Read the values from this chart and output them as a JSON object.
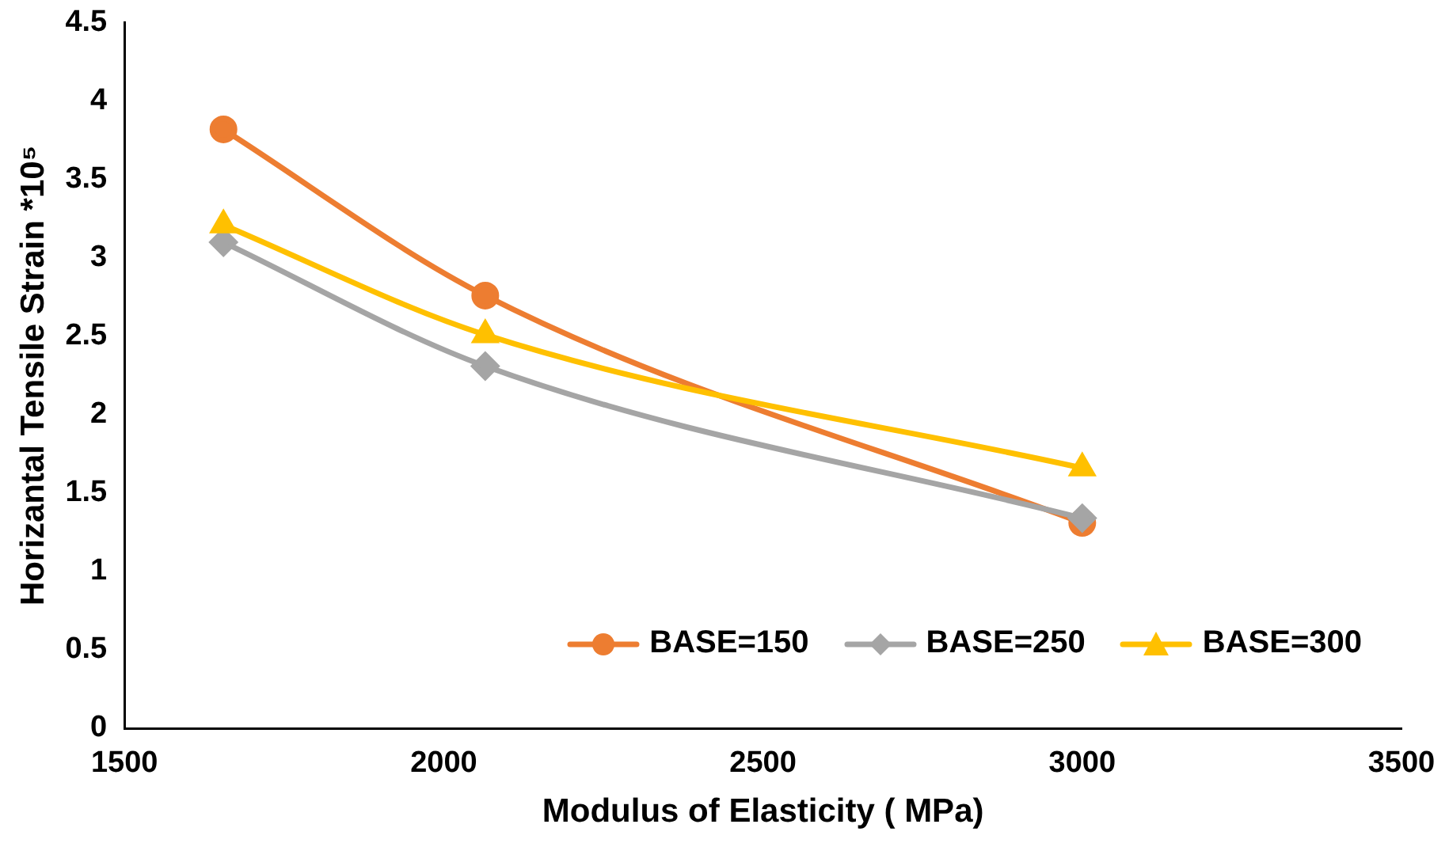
{
  "chart_data": {
    "type": "line",
    "xlabel": "Modulus of Elasticity ( MPa)",
    "ylabel": "Horizantal Tensile Strain *10⁵",
    "x": [
      1655,
      2065,
      3000
    ],
    "xlim": [
      1500,
      3500
    ],
    "xticks": [
      1500,
      2000,
      2500,
      3000,
      3500
    ],
    "ylim": [
      0,
      4.5
    ],
    "yticks": [
      0,
      0.5,
      1,
      1.5,
      2,
      2.5,
      3,
      3.5,
      4,
      4.5
    ],
    "series": [
      {
        "name": "BASE=150",
        "color": "#ed7d31",
        "marker": "circle",
        "values": [
          3.82,
          2.76,
          1.31
        ]
      },
      {
        "name": "BASE=250",
        "color": "#a5a5a5",
        "marker": "diamond",
        "values": [
          3.1,
          2.31,
          1.34
        ]
      },
      {
        "name": "BASE=300",
        "color": "#ffc000",
        "marker": "triangle",
        "values": [
          3.21,
          2.51,
          1.66
        ]
      }
    ],
    "grid": false,
    "legend": "bottom right",
    "line_style": "solid"
  }
}
